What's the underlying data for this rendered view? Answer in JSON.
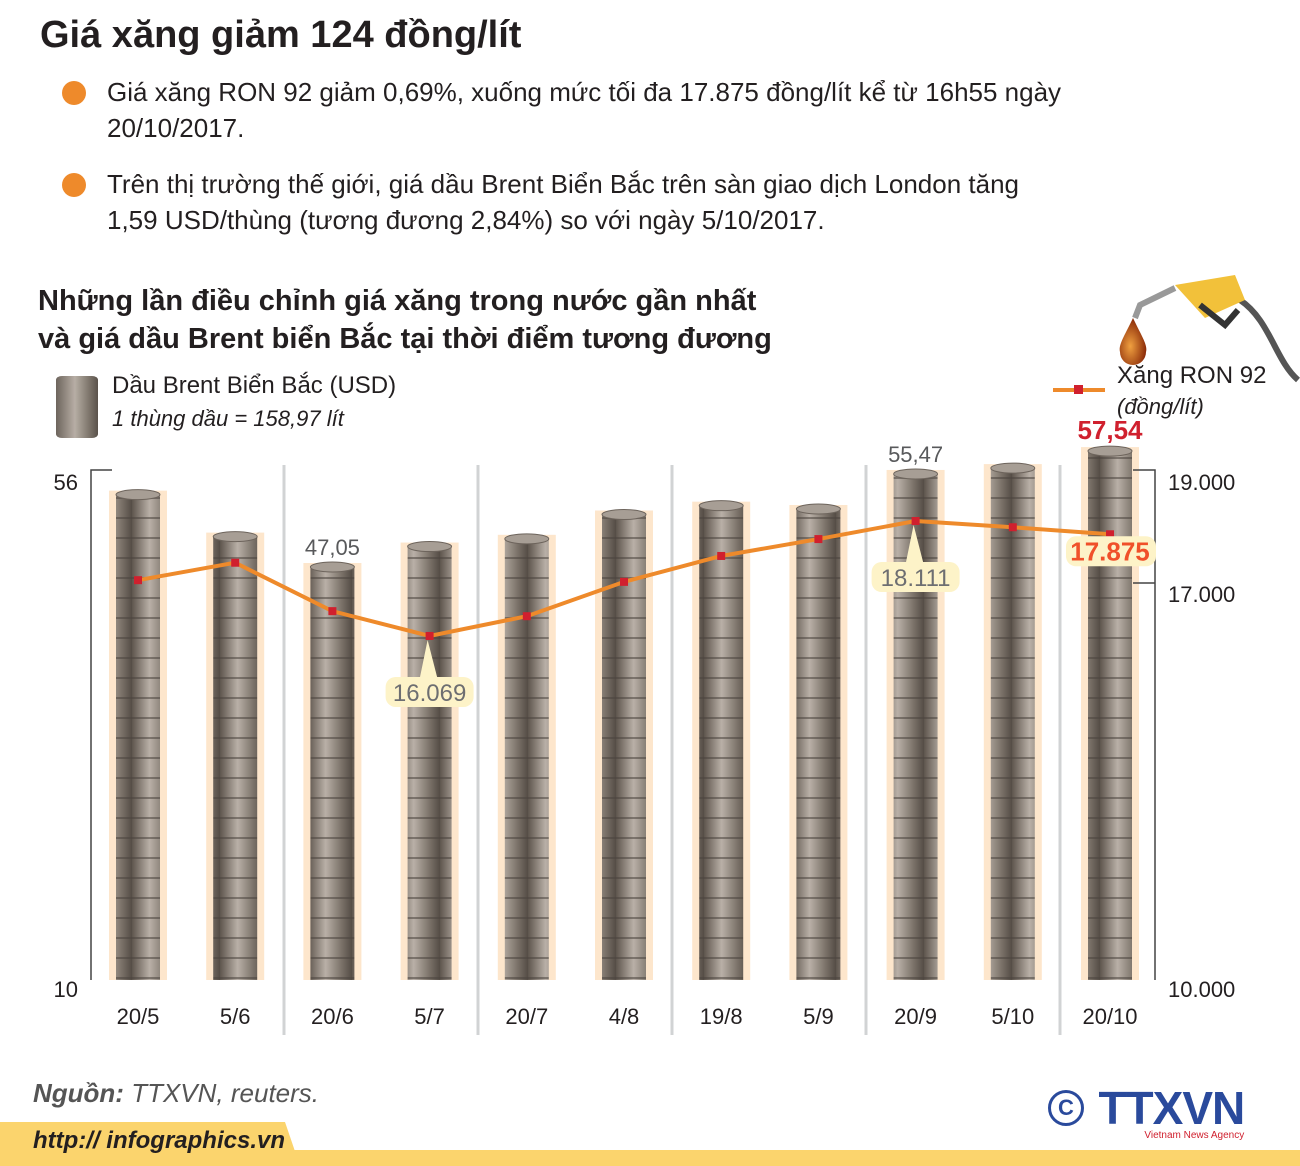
{
  "title": "Giá xăng giảm 124 đồng/lít",
  "bullets": [
    "Giá xăng RON 92 giảm 0,69%, xuống mức tối đa 17.875 đồng/lít kể từ 16h55 ngày 20/10/2017.",
    "Trên thị trường thế giới, giá dầu Brent Biển Bắc trên sàn giao dịch London tăng 1,59 USD/thùng (tương đương 2,84%) so với ngày 5/10/2017."
  ],
  "subtitle_line1": "Những lần điều chỉnh giá xăng trong nước gần nhất",
  "subtitle_line2": "và giá dầu Brent biển Bắc tại thời điểm tương đương",
  "source_label": "Nguồn:",
  "source_text": " TTXVN, reuters.",
  "url": "http:// infographics.vn",
  "logo_text": "TTXVN",
  "logo_tagline": "Vietnam News Agency",
  "copyright": "©",
  "colors": {
    "line": "#ee8a2b",
    "marker": "#d0202e",
    "highlight": "#fde6cc",
    "callout": "#fdf3c8",
    "accent_red": "#d0202e",
    "footer": "#fbd46d"
  },
  "icons": [
    "oil-barrel-icon",
    "fuel-nozzle-icon",
    "oil-drop-icon"
  ],
  "chart_data": {
    "type": "bar+line",
    "categories": [
      "20/5",
      "5/6",
      "20/6",
      "5/7",
      "20/7",
      "4/8",
      "19/8",
      "5/9",
      "20/9",
      "5/10",
      "20/10"
    ],
    "series": [
      {
        "name": "Dầu Brent Biển Bắc (USD)",
        "note": "1 thùng dầu = 158,97 lít",
        "type": "bar",
        "axis": "left",
        "values": [
          53.6,
          49.8,
          47.05,
          48.9,
          49.6,
          51.8,
          52.6,
          52.3,
          55.47,
          56.0,
          57.54
        ],
        "labels": {
          "2": "47,05",
          "8": "55,47",
          "10": "57,54"
        }
      },
      {
        "name": "Xăng RON 92",
        "unit": "(đồng/lít)",
        "type": "line",
        "axis": "right",
        "values": [
          17060,
          17370,
          16510,
          16069,
          16420,
          17030,
          17490,
          17790,
          18111,
          18000,
          17875
        ],
        "labels": {
          "3": "16.069",
          "8": "18.111",
          "10": "17.875"
        }
      }
    ],
    "left_axis": {
      "ticks": [
        "56",
        "10"
      ],
      "range": [
        10,
        56
      ]
    },
    "right_axis": {
      "ticks": [
        "19.000",
        "17.000",
        "10.000"
      ],
      "range": [
        10000,
        19000
      ]
    },
    "grid": false,
    "legend": "top"
  }
}
